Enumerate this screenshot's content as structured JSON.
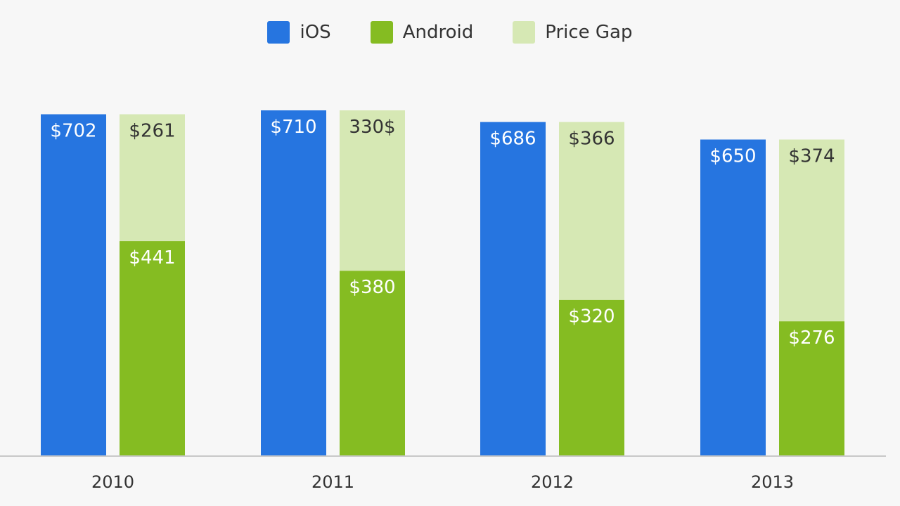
{
  "colors": {
    "ios": "#2675e0",
    "android": "#85bc22",
    "gap": "#d6e8b4",
    "axis": "#c8c8c8",
    "label_light": "#ffffff",
    "label_dark": "#333333"
  },
  "legend": [
    {
      "name": "iOS",
      "color": "#2675e0"
    },
    {
      "name": "Android",
      "color": "#85bc22"
    },
    {
      "name": "Price Gap",
      "color": "#d6e8b4"
    }
  ],
  "chart_data": {
    "type": "bar",
    "stacked_second_bar": true,
    "categories": [
      "2010",
      "2011",
      "2012",
      "2013"
    ],
    "series": [
      {
        "name": "iOS",
        "values": [
          702,
          710,
          686,
          650
        ],
        "labels": [
          "$702",
          "$710",
          "$686",
          "$650"
        ]
      },
      {
        "name": "Android",
        "values": [
          441,
          380,
          320,
          276
        ],
        "labels": [
          "$441",
          "$380",
          "$320",
          "$276"
        ]
      },
      {
        "name": "Price Gap",
        "values": [
          261,
          330,
          366,
          374
        ],
        "labels": [
          "$261",
          "330$",
          "$366",
          "$374"
        ]
      }
    ],
    "legend_position": "top-center",
    "grid": false,
    "ylim": [
      0,
      710
    ]
  }
}
